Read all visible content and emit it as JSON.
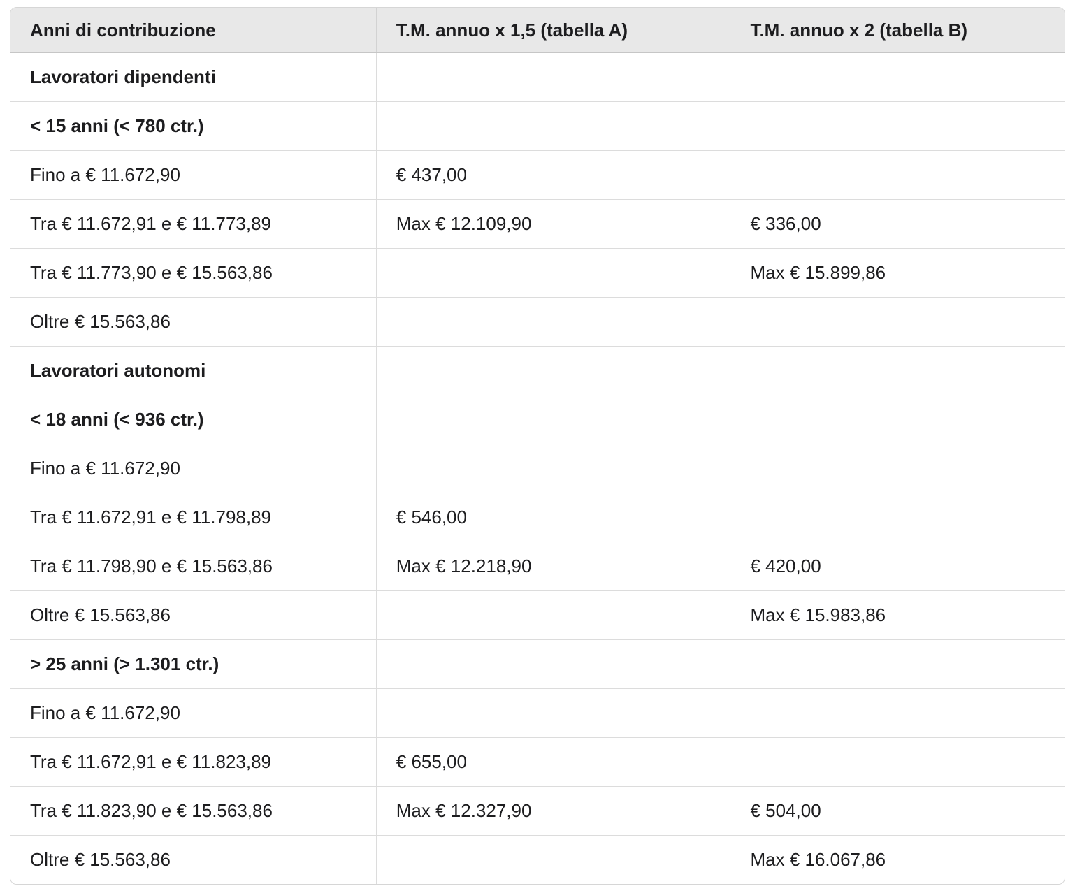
{
  "colors": {
    "header_background": "#e8e8e8",
    "header_bottom_border": "#c6c6c6",
    "grid_line": "#dcdcdc",
    "outer_border": "#d6d6d6",
    "text": "#1d1d1f",
    "page_background": "#ffffff"
  },
  "table": {
    "columns": [
      {
        "label": "Anni di contribuzione"
      },
      {
        "label": "T.M. annuo x 1,5 (tabella A)"
      },
      {
        "label": "T.M. annuo x 2 (tabella B)"
      }
    ],
    "rows": [
      {
        "bold": true,
        "cells": [
          "Lavoratori dipendenti",
          "",
          ""
        ]
      },
      {
        "bold": true,
        "cells": [
          "< 15 anni (< 780 ctr.)",
          "",
          ""
        ]
      },
      {
        "bold": false,
        "cells": [
          "Fino a € 11.672,90",
          "€ 437,00",
          ""
        ]
      },
      {
        "bold": false,
        "cells": [
          "Tra € 11.672,91 e € 11.773,89",
          "Max € 12.109,90",
          "€ 336,00"
        ]
      },
      {
        "bold": false,
        "cells": [
          "Tra € 11.773,90 e € 15.563,86",
          "",
          "Max € 15.899,86"
        ]
      },
      {
        "bold": false,
        "cells": [
          "Oltre € 15.563,86",
          "",
          ""
        ]
      },
      {
        "bold": true,
        "cells": [
          "Lavoratori autonomi",
          "",
          ""
        ]
      },
      {
        "bold": true,
        "cells": [
          "< 18 anni (< 936 ctr.)",
          "",
          ""
        ]
      },
      {
        "bold": false,
        "cells": [
          "Fino a € 11.672,90",
          "",
          ""
        ]
      },
      {
        "bold": false,
        "cells": [
          "Tra € 11.672,91 e € 11.798,89",
          "€ 546,00",
          ""
        ]
      },
      {
        "bold": false,
        "cells": [
          "Tra € 11.798,90 e € 15.563,86",
          "Max € 12.218,90",
          "€ 420,00"
        ]
      },
      {
        "bold": false,
        "cells": [
          "Oltre € 15.563,86",
          "",
          "Max € 15.983,86"
        ]
      },
      {
        "bold": true,
        "cells": [
          "> 25 anni (> 1.301 ctr.)",
          "",
          ""
        ]
      },
      {
        "bold": false,
        "cells": [
          "Fino a € 11.672,90",
          "",
          ""
        ]
      },
      {
        "bold": false,
        "cells": [
          "Tra € 11.672,91 e € 11.823,89",
          "€ 655,00",
          ""
        ]
      },
      {
        "bold": false,
        "cells": [
          "Tra € 11.823,90 e € 15.563,86",
          "Max € 12.327,90",
          "€ 504,00"
        ]
      },
      {
        "bold": false,
        "cells": [
          "Oltre € 15.563,86",
          "",
          "Max € 16.067,86"
        ]
      }
    ]
  }
}
